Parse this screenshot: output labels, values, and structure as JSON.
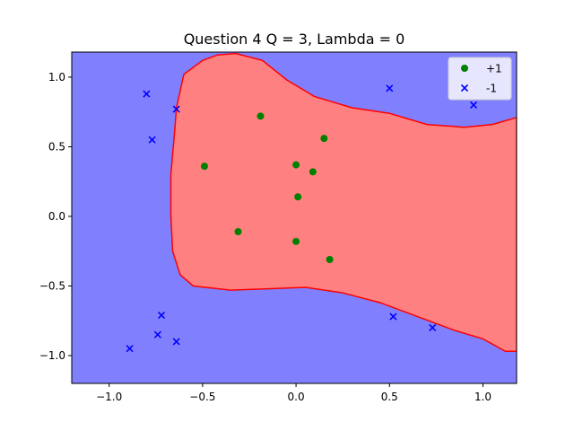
{
  "chart_data": {
    "type": "scatter",
    "title": "Question 4 Q = 3, Lambda = 0",
    "xlabel": "",
    "ylabel": "",
    "xlim": [
      -1.2,
      1.18
    ],
    "ylim": [
      -1.2,
      1.18
    ],
    "xticks": [
      -1.0,
      -0.5,
      0.0,
      0.5,
      1.0
    ],
    "xtick_labels": [
      "−1.0",
      "−0.5",
      "0.0",
      "0.5",
      "1.0"
    ],
    "yticks": [
      1.0,
      0.5,
      0.0,
      -0.5,
      -1.0
    ],
    "ytick_labels": [
      "1.0",
      "0.5",
      "0.0",
      "−0.5",
      "−1.0"
    ],
    "grid": false,
    "legend_position": "top-right",
    "background_region": {
      "label": "-1",
      "color": "#8080ff"
    },
    "decision_region": {
      "label": "+1",
      "fill_color": "#ff8080",
      "edge_color": "#ff0000",
      "boundary": [
        [
          -0.64,
          0.78
        ],
        [
          -0.6,
          1.02
        ],
        [
          -0.5,
          1.12
        ],
        [
          -0.42,
          1.16
        ],
        [
          -0.32,
          1.17
        ],
        [
          -0.18,
          1.12
        ],
        [
          -0.05,
          0.98
        ],
        [
          0.1,
          0.86
        ],
        [
          0.3,
          0.78
        ],
        [
          0.5,
          0.74
        ],
        [
          0.7,
          0.66
        ],
        [
          0.9,
          0.64
        ],
        [
          1.05,
          0.66
        ],
        [
          1.18,
          0.71
        ],
        [
          1.18,
          -0.97
        ],
        [
          1.12,
          -0.97
        ],
        [
          1.0,
          -0.88
        ],
        [
          0.85,
          -0.82
        ],
        [
          0.65,
          -0.72
        ],
        [
          0.45,
          -0.62
        ],
        [
          0.25,
          -0.55
        ],
        [
          0.05,
          -0.51
        ],
        [
          -0.15,
          -0.52
        ],
        [
          -0.35,
          -0.53
        ],
        [
          -0.55,
          -0.5
        ],
        [
          -0.62,
          -0.42
        ],
        [
          -0.66,
          -0.25
        ],
        [
          -0.67,
          0.0
        ],
        [
          -0.67,
          0.3
        ],
        [
          -0.65,
          0.6
        ]
      ]
    },
    "series": [
      {
        "name": "+1",
        "marker": "circle",
        "color": "#008000",
        "points": [
          [
            -0.19,
            0.72
          ],
          [
            0.15,
            0.56
          ],
          [
            -0.49,
            0.36
          ],
          [
            0.0,
            0.37
          ],
          [
            0.09,
            0.32
          ],
          [
            0.01,
            0.14
          ],
          [
            -0.31,
            -0.11
          ],
          [
            0.0,
            -0.18
          ],
          [
            0.18,
            -0.31
          ]
        ]
      },
      {
        "name": "-1",
        "marker": "x",
        "color": "#0000ff",
        "points": [
          [
            -0.8,
            0.88
          ],
          [
            -0.64,
            0.77
          ],
          [
            -0.77,
            0.55
          ],
          [
            0.5,
            0.92
          ],
          [
            0.95,
            0.8
          ],
          [
            -0.72,
            -0.71
          ],
          [
            -0.74,
            -0.85
          ],
          [
            -0.64,
            -0.9
          ],
          [
            -0.89,
            -0.95
          ],
          [
            0.52,
            -0.72
          ],
          [
            0.73,
            -0.8
          ]
        ]
      }
    ]
  }
}
